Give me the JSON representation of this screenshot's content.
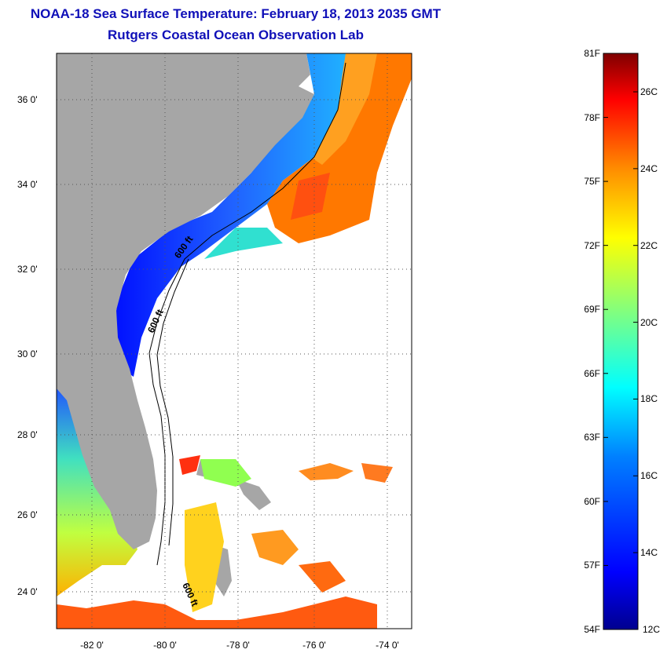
{
  "title": "NOAA-18 Sea Surface Temperature:  February 18, 2013 2035 GMT",
  "subtitle": "Rutgers Coastal Ocean Observation Lab",
  "map": {
    "lat_ticks": [
      "36 0'",
      "34 0'",
      "32 0'",
      "30 0'",
      "28 0'",
      "26 0'",
      "24 0'"
    ],
    "lon_ticks": [
      "-82 0'",
      "-80 0'",
      "-78 0'",
      "-76 0'",
      "-74 0'"
    ],
    "contour_labels": [
      "600 ft",
      "600 ft",
      "600 ft"
    ],
    "colors": {
      "land": "#a6a6a6",
      "ocean_no_data": "#ffffff",
      "frame": "#000000"
    }
  },
  "colorbar": {
    "f_labels": [
      "81F",
      "78F",
      "75F",
      "72F",
      "69F",
      "66F",
      "63F",
      "60F",
      "57F",
      "54F"
    ],
    "c_labels": [
      "26C",
      "24C",
      "22C",
      "20C",
      "18C",
      "16C",
      "14C",
      "12C"
    ],
    "colors": [
      "#7f0000",
      "#ff0000",
      "#ff8c00",
      "#ffff00",
      "#80ff80",
      "#00ffff",
      "#0080ff",
      "#0000ff",
      "#00008f"
    ]
  }
}
